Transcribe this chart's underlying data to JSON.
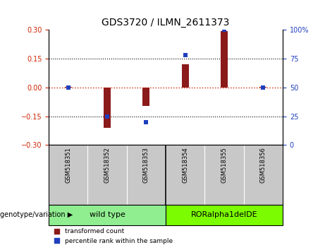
{
  "title": "GDS3720 / ILMN_2611373",
  "samples": [
    "GSM518351",
    "GSM518352",
    "GSM518353",
    "GSM518354",
    "GSM518355",
    "GSM518356"
  ],
  "transformed_count": [
    0.005,
    -0.21,
    -0.095,
    0.12,
    0.295,
    0.005
  ],
  "percentile_rank": [
    50,
    25,
    20,
    78,
    100,
    50
  ],
  "groups": [
    {
      "label": "wild type",
      "indices": [
        0,
        1,
        2
      ],
      "color": "#90EE90"
    },
    {
      "label": "RORalpha1delDE",
      "indices": [
        3,
        4,
        5
      ],
      "color": "#7CFC00"
    }
  ],
  "ylim_left": [
    -0.3,
    0.3
  ],
  "ylim_right": [
    0,
    100
  ],
  "yticks_left": [
    -0.3,
    -0.15,
    0,
    0.15,
    0.3
  ],
  "yticks_right": [
    0,
    25,
    50,
    75,
    100
  ],
  "bar_color": "#8B1A1A",
  "dot_color": "#1F3FBF",
  "hline_color": "#CC2200",
  "grid_color": "black",
  "grid_levels": [
    -0.15,
    0.15
  ],
  "background_color": "white",
  "label_bg_color": "#C8C8C8",
  "genotype_label": "genotype/variation",
  "legend_items": [
    {
      "label": "transformed count",
      "color": "#8B1A1A"
    },
    {
      "label": "percentile rank within the sample",
      "color": "#1F3FBF"
    }
  ],
  "bar_width": 0.18
}
